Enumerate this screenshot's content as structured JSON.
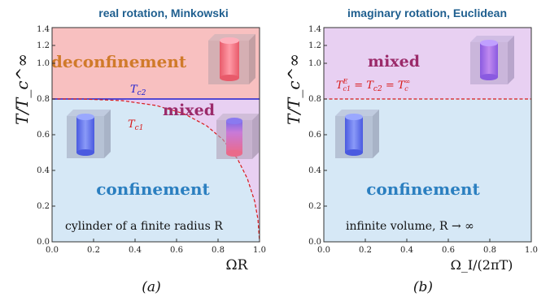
{
  "panel_a": {
    "title": "real rotation, Minkowski",
    "ylabel": "T/T_c^∞",
    "xlabel": "ΩR",
    "caption": "(a)",
    "region_top": "deconfinement",
    "region_mid": "mixed",
    "region_bottom": "confinement",
    "curve_label_tc2": "T_c2",
    "curve_label_tc1": "T_c1",
    "note": "cylinder of a finite radius R",
    "x_ticks": [
      "0.0",
      "0.2",
      "0.4",
      "0.6",
      "0.8",
      "1.0"
    ],
    "y_ticks": [
      "0.0",
      "0.2",
      "0.4",
      "0.6",
      "0.8",
      "1.0",
      "1.2",
      "1.4"
    ]
  },
  "panel_b": {
    "title": "imaginary rotation, Euclidean",
    "ylabel": "T/T_c^∞",
    "xlabel": "Ω_I/(2πT)",
    "caption": "(b)",
    "region_top": "mixed",
    "region_bottom": "confinement",
    "curve_label": "T_c1^E = T_c2 = T_c^∞",
    "note": "infinite volume, R → ∞",
    "x_ticks": [
      "0.0",
      "0.2",
      "0.4",
      "0.6",
      "0.8",
      "1.0"
    ],
    "y_ticks": [
      "0.0",
      "0.2",
      "0.4",
      "0.6",
      "0.8",
      "1.0",
      "1.2",
      "1.4"
    ]
  },
  "colors": {
    "deconfinement_bg": "#f8c0c0",
    "mixed_bg": "#e8d0f2",
    "confinement_bg": "#d6e8f6",
    "title": "#1f5f8f",
    "deconfinement_text": "#d07a2a",
    "mixed_text": "#9b2a6a",
    "confinement_text": "#2b7fc0",
    "tc2_line": "#2020d0",
    "tc1_line": "#d81818"
  }
}
